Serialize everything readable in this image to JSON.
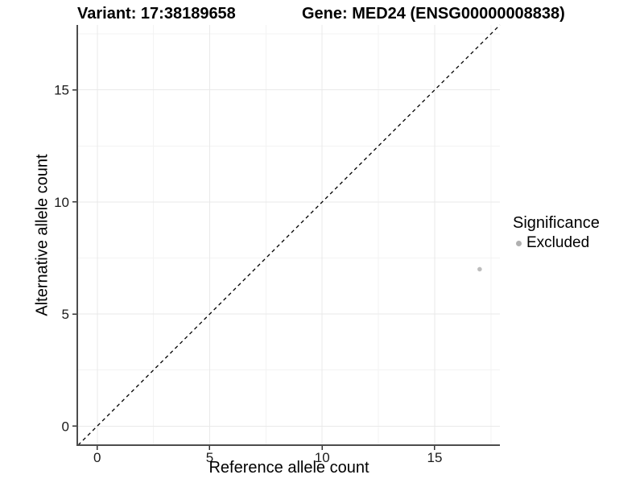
{
  "titles": {
    "variant": "Variant: 17:38189658",
    "gene": "Gene: MED24 (ENSG00000008838)"
  },
  "chart_data": {
    "type": "scatter",
    "xlabel": "Reference allele count",
    "ylabel": "Alternative allele count",
    "xlim": [
      -0.85,
      17.9
    ],
    "ylim": [
      -0.85,
      17.9
    ],
    "x_ticks": [
      0,
      5,
      10,
      15
    ],
    "y_ticks": [
      0,
      5,
      10,
      15
    ],
    "x_minor_ticks": [
      2.5,
      7.5,
      12.5,
      17.5
    ],
    "y_minor_ticks": [
      2.5,
      7.5,
      12.5,
      17.5
    ],
    "grid": "major+minor",
    "identity_line": {
      "equation": "y = x",
      "style": "dashed",
      "color": "#000000"
    },
    "series": [
      {
        "name": "Excluded",
        "color": "#bdbdbd",
        "point_radius": 2.8,
        "points": [
          [
            17,
            7
          ]
        ]
      }
    ],
    "legend": {
      "position": "right",
      "title": "Significance",
      "items": [
        {
          "label": "Excluded",
          "color": "#b0b0b0",
          "marker": "circle"
        }
      ]
    }
  },
  "colors": {
    "background": "#ffffff",
    "axis_line": "#4d4d4d",
    "tick_mark": "#333333",
    "tick_label": "#1a1a1a",
    "grid_major": "#e9e9e9",
    "grid_minor": "#f3f3f3"
  }
}
